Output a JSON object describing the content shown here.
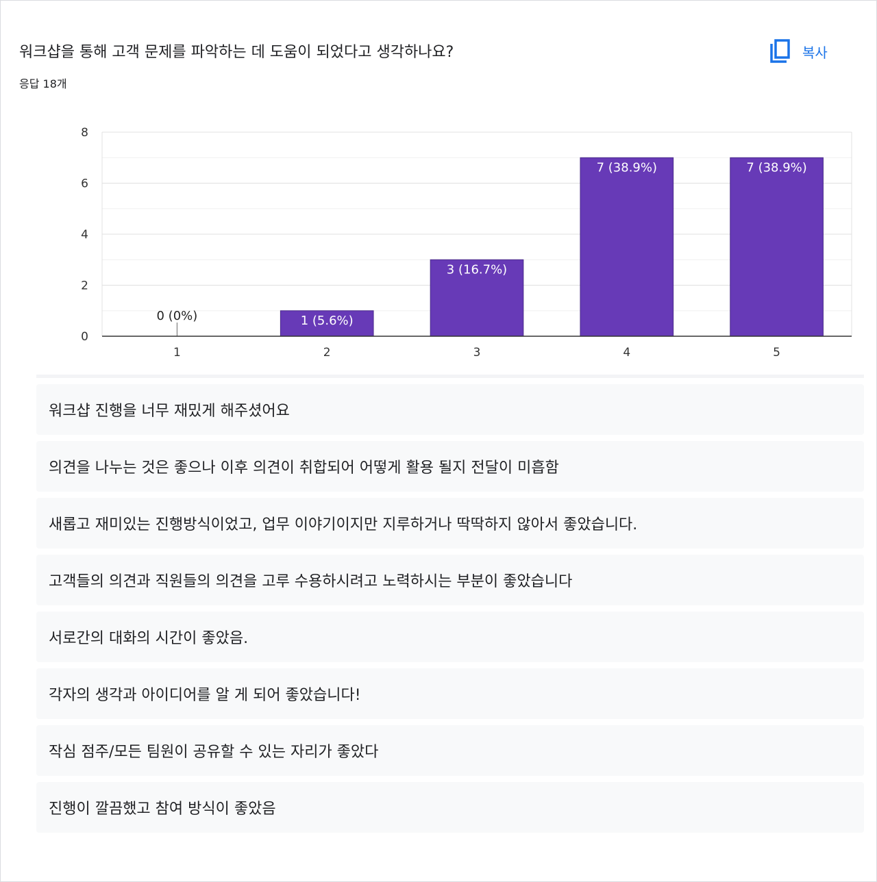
{
  "question": {
    "title": "워크샵을 통해 고객 문제를 파악하는 데 도움이 되었다고 생각하나요?",
    "response_count": "응답 18개"
  },
  "toolbar": {
    "copy_label": "복사",
    "copy_icon": "copy-icon"
  },
  "colors": {
    "bar": "#673ab7",
    "accent": "#1a73e8",
    "grid": "#e5e5e5",
    "axis": "#333333"
  },
  "chart_data": {
    "type": "bar",
    "categories": [
      "1",
      "2",
      "3",
      "4",
      "5"
    ],
    "values": [
      0,
      1,
      3,
      7,
      7
    ],
    "data_labels": [
      "0 (0%)",
      "1 (5.6%)",
      "3 (16.7%)",
      "7 (38.9%)",
      "7 (38.9%)"
    ],
    "y_ticks": [
      "0",
      "2",
      "4",
      "6",
      "8"
    ],
    "ylim": [
      0,
      8
    ],
    "grid": true
  },
  "responses": [
    "워크샵 진행을 너무 재밌게 해주셨어요",
    "의견을 나누는 것은 좋으나 이후 의견이 취합되어 어떻게 활용 될지 전달이 미흡함",
    "새롭고 재미있는 진행방식이었고, 업무 이야기이지만 지루하거나 딱딱하지 않아서 좋았습니다.",
    "고객들의 의견과 직원들의 의견을 고루 수용하시려고 노력하시는 부분이 좋았습니다",
    "서로간의 대화의 시간이 좋았음.",
    "각자의 생각과 아이디어를 알 게 되어 좋았습니다!",
    "작심 점주/모든 팀원이 공유할 수 있는 자리가 좋았다",
    "진행이 깔끔했고 참여 방식이 좋았음"
  ]
}
